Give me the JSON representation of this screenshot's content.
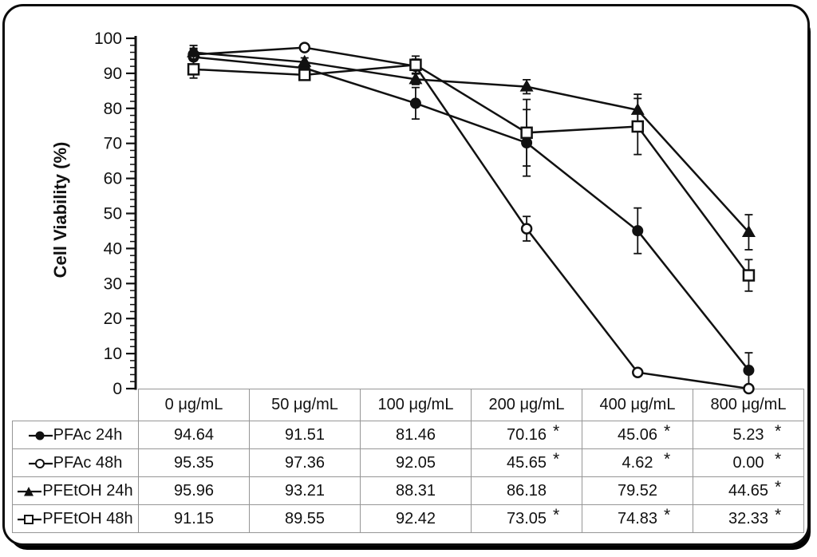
{
  "figure": {
    "ink_color": "#111111",
    "table_border_color": "#969696",
    "frame_border_color": "#0b0b0b"
  },
  "chart_data": {
    "type": "line",
    "title": "",
    "xlabel": "",
    "ylabel": "Cell Viability (%)",
    "ylim": [
      0,
      100
    ],
    "y_tick_step": 10,
    "y_minor_step": 2,
    "grid": "off",
    "legend_position": "table-left-column",
    "categories": [
      "0 μg/mL",
      "50 μg/mL",
      "100 μg/mL",
      "200 μg/mL",
      "400 μg/mL",
      "800 μg/mL"
    ],
    "significance_symbol": "*",
    "value_precision": 2,
    "series": [
      {
        "name": "PFAc 24h",
        "marker": "filled-circle",
        "values": [
          94.64,
          91.51,
          81.46,
          70.16,
          45.06,
          5.23
        ],
        "errors": [
          2.5,
          1,
          4.5,
          9.5,
          6.5,
          5
        ],
        "starred": [
          false,
          false,
          false,
          true,
          true,
          true
        ]
      },
      {
        "name": "PFAc 48h",
        "marker": "open-circle",
        "values": [
          95.35,
          97.36,
          92.05,
          45.65,
          4.62,
          0.0
        ],
        "errors": [
          1.5,
          1,
          2,
          3.5,
          1,
          0.8
        ],
        "starred": [
          false,
          false,
          false,
          true,
          true,
          true
        ]
      },
      {
        "name": "PFEtOH 24h",
        "marker": "filled-triangle",
        "values": [
          95.96,
          93.21,
          88.31,
          86.18,
          79.52,
          44.65
        ],
        "errors": [
          2,
          1.2,
          1.5,
          2,
          4.5,
          5
        ],
        "starred": [
          false,
          false,
          false,
          false,
          false,
          true
        ]
      },
      {
        "name": "PFEtOH 48h",
        "marker": "open-square",
        "values": [
          91.15,
          89.55,
          92.42,
          73.05,
          74.83,
          32.33
        ],
        "errors": [
          2.5,
          1.5,
          2.5,
          9.5,
          8,
          4.5
        ],
        "starred": [
          false,
          false,
          false,
          true,
          true,
          true
        ]
      }
    ]
  }
}
